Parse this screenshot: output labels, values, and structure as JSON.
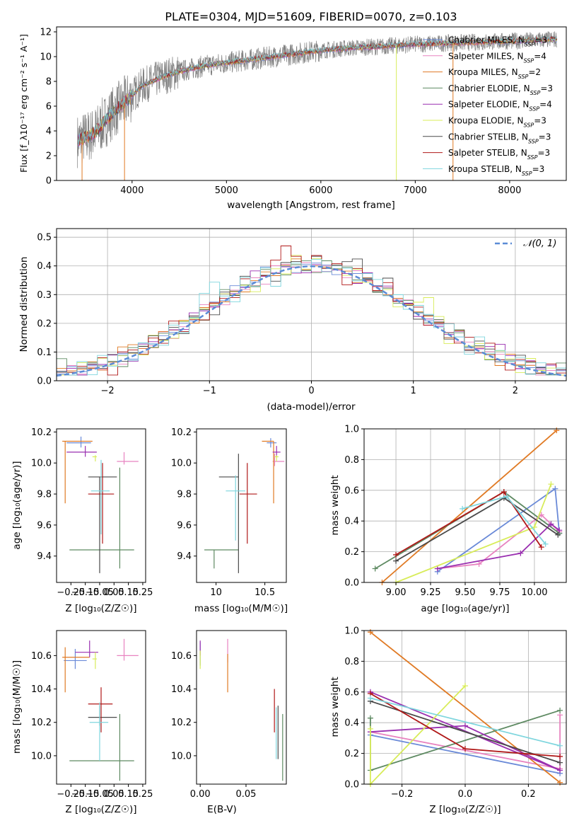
{
  "figure_title": "PLATE=0304, MJD=51609, FIBERID=0070, z=0.103",
  "colors": {
    "Chabrier MILES": "#6a8ad8",
    "Salpeter MILES": "#e883c0",
    "Kroupa MILES": "#e07a24",
    "Chabrier ELODIE": "#5e8a62",
    "Salpeter ELODIE": "#9a2fb0",
    "Kroupa ELODIE": "#d8ec5a",
    "Chabrier STELIB": "#4a4a4a",
    "Salpeter STELIB": "#b01818",
    "Kroupa STELIB": "#7fd6de",
    "data": "#808080",
    "normal": "#5b8bd6"
  },
  "legend": [
    {
      "name": "Chabrier MILES",
      "n": "3"
    },
    {
      "name": "Salpeter MILES",
      "n": "4"
    },
    {
      "name": "Kroupa MILES",
      "n": "2"
    },
    {
      "name": "Chabrier ELODIE",
      "n": "3"
    },
    {
      "name": "Salpeter ELODIE",
      "n": "4"
    },
    {
      "name": "Kroupa ELODIE",
      "n": "3"
    },
    {
      "name": "Chabrier STELIB",
      "n": "3"
    },
    {
      "name": "Salpeter STELIB",
      "n": "3"
    },
    {
      "name": "Kroupa STELIB",
      "n": "3"
    }
  ],
  "chart_data": [
    {
      "id": "spectrum",
      "type": "line",
      "xlabel": "wavelength [Angstrom, rest frame]",
      "ylabel": "Flux [f_λ10⁻¹⁷ erg cm⁻² s⁻¹ A⁻¹]",
      "xlim": [
        3200,
        8600
      ],
      "ylim": [
        0,
        12.4
      ],
      "xticks": [
        4000,
        5000,
        6000,
        7000,
        8000
      ],
      "yticks": [
        0,
        2,
        4,
        6,
        8,
        10,
        12
      ],
      "continuum": [
        [
          3420,
          3.2
        ],
        [
          3600,
          3.8
        ],
        [
          3800,
          5.5
        ],
        [
          3950,
          6.5
        ],
        [
          4100,
          7.6
        ],
        [
          4300,
          8.3
        ],
        [
          4500,
          8.8
        ],
        [
          4800,
          9.3
        ],
        [
          5000,
          9.5
        ],
        [
          5200,
          9.7
        ],
        [
          5500,
          10.0
        ],
        [
          5800,
          10.3
        ],
        [
          6000,
          10.5
        ],
        [
          6300,
          10.7
        ],
        [
          6600,
          10.8
        ],
        [
          7000,
          11.0
        ],
        [
          7400,
          11.1
        ],
        [
          7800,
          11.2
        ],
        [
          8200,
          11.3
        ],
        [
          8500,
          11.4
        ]
      ],
      "data_noise": 1.2
    },
    {
      "id": "residuals",
      "type": "histogram",
      "xlabel": "(data-model)/error",
      "ylabel": "Normed distribution",
      "xlim": [
        -2.5,
        2.5
      ],
      "ylim": [
        0,
        0.53
      ],
      "xticks": [
        -2,
        -1,
        0,
        1,
        2
      ],
      "yticks": [
        0.0,
        0.1,
        0.2,
        0.3,
        0.4,
        0.5
      ],
      "bin_width": 0.1,
      "reference": "𝒩(0, 1)",
      "sigma": 1.02,
      "amplitude": 0.4,
      "noise": [
        0.0,
        0.012,
        -0.008,
        0.015,
        -0.02,
        0.01,
        0.006,
        -0.014,
        0.022,
        -0.005,
        0.018,
        -0.01,
        0.004,
        -0.016,
        0.012,
        0.008,
        -0.006,
        0.02,
        -0.012,
        0.002,
        0.035,
        0.05,
        0.015,
        -0.018,
        0.025,
        -0.004,
        0.01,
        -0.022,
        0.014,
        0.006,
        -0.01,
        0.018,
        -0.008,
        0.012,
        0.004,
        -0.015,
        0.009,
        0.02,
        -0.006,
        0.011,
        -0.012,
        0.016,
        0.003,
        -0.009,
        0.014,
        0.007,
        -0.011,
        0.019,
        -0.003,
        0.008
      ]
    },
    {
      "id": "age_vs_Z",
      "type": "errorbar",
      "xlabel": "Z [log₁₀(Z/Z☉)]",
      "ylabel": "age  [log₁₀(age/yr)]",
      "xlim": [
        -0.35,
        0.27
      ],
      "ylim": [
        9.23,
        10.22
      ],
      "xticks": [
        -0.25,
        -0.15,
        -0.05,
        0.05,
        0.15,
        0.25
      ],
      "xticklabels": [
        "−0.25",
        "−0.15",
        "−0.05",
        "0.05",
        "0.15",
        "0.25"
      ],
      "yticks": [
        9.4,
        9.6,
        9.8,
        10.0,
        10.2
      ],
      "points": [
        {
          "s": "Chabrier MILES",
          "x": -0.18,
          "xe": [
            0.1,
            0.07
          ],
          "y": 10.13,
          "ye": [
            0.03,
            0.04
          ]
        },
        {
          "s": "Salpeter MILES",
          "x": 0.12,
          "xe": [
            0.05,
            0.1
          ],
          "y": 10.01,
          "ye": [
            0.02,
            0.06
          ]
        },
        {
          "s": "Kroupa MILES",
          "x": -0.29,
          "xe": [
            0.02,
            0.19
          ],
          "y": 10.14,
          "ye": [
            0.4,
            0.0
          ]
        },
        {
          "s": "Chabrier ELODIE",
          "x": 0.09,
          "xe": [
            0.35,
            0.1
          ],
          "y": 9.44,
          "ye": [
            0.12,
            0.53
          ]
        },
        {
          "s": "Salpeter ELODIE",
          "x": -0.15,
          "xe": [
            0.13,
            0.08
          ],
          "y": 10.07,
          "ye": [
            0.03,
            0.04
          ]
        },
        {
          "s": "Kroupa ELODIE",
          "x": -0.08,
          "xe": [
            0.02,
            0.01
          ],
          "y": 10.04,
          "ye": [
            0.03,
            0.01
          ]
        },
        {
          "s": "Chabrier STELIB",
          "x": -0.05,
          "xe": [
            0.08,
            0.12
          ],
          "y": 9.91,
          "ye": [
            0.62,
            0.0
          ]
        },
        {
          "s": "Salpeter STELIB",
          "x": -0.03,
          "xe": [
            0.1,
            0.08
          ],
          "y": 9.8,
          "ye": [
            0.32,
            0.2
          ]
        },
        {
          "s": "Kroupa STELIB",
          "x": -0.04,
          "xe": [
            0.07,
            0.06
          ],
          "y": 9.82,
          "ye": [
            0.28,
            0.2
          ]
        }
      ]
    },
    {
      "id": "age_vs_mass",
      "type": "errorbar",
      "xlabel": "mass [log₁₀(M/M☉)]",
      "ylabel": "",
      "xlim": [
        9.8,
        10.72
      ],
      "ylim": [
        9.23,
        10.22
      ],
      "xticks": [
        10.0,
        10.5
      ],
      "yticks": [
        9.4,
        9.6,
        9.8,
        10.0,
        10.2
      ],
      "points": [
        {
          "s": "Chabrier MILES",
          "x": 10.56,
          "xe": [
            0.04,
            0.06
          ],
          "y": 10.13,
          "ye": [
            0.03,
            0.03
          ]
        },
        {
          "s": "Salpeter MILES",
          "x": 10.6,
          "xe": [
            0.02,
            0.1
          ],
          "y": 10.01,
          "ye": [
            0.03,
            0.05
          ]
        },
        {
          "s": "Kroupa MILES",
          "x": 10.59,
          "xe": [
            0.12,
            0.0
          ],
          "y": 10.14,
          "ye": [
            0.4,
            0.0
          ]
        },
        {
          "s": "Chabrier ELODIE",
          "x": 9.98,
          "xe": [
            0.1,
            0.25
          ],
          "y": 9.44,
          "ye": [
            0.12,
            0.0
          ]
        },
        {
          "s": "Salpeter ELODIE",
          "x": 10.62,
          "xe": [
            0.04,
            0.04
          ],
          "y": 10.07,
          "ye": [
            0.03,
            0.04
          ]
        },
        {
          "s": "Kroupa ELODIE",
          "x": 10.62,
          "xe": [
            0.02,
            0.02
          ],
          "y": 10.04,
          "ye": [
            0.03,
            0.01
          ]
        },
        {
          "s": "Chabrier STELIB",
          "x": 10.23,
          "xe": [
            0.2,
            0.0
          ],
          "y": 9.91,
          "ye": [
            0.62,
            0.15
          ]
        },
        {
          "s": "Salpeter STELIB",
          "x": 10.32,
          "xe": [
            0.08,
            0.1
          ],
          "y": 9.8,
          "ye": [
            0.32,
            0.2
          ]
        },
        {
          "s": "Kroupa STELIB",
          "x": 10.2,
          "xe": [
            0.1,
            0.1
          ],
          "y": 9.82,
          "ye": [
            0.32,
            0.1
          ]
        }
      ]
    },
    {
      "id": "weight_vs_age",
      "type": "line",
      "xlabel": "age  [log₁₀(age/yr)]",
      "ylabel": "mass weight",
      "xlim": [
        8.77,
        10.23
      ],
      "ylim": [
        0,
        1.0
      ],
      "xticks": [
        9.0,
        9.25,
        9.5,
        9.75,
        10.0
      ],
      "xticklabels": [
        "9.00",
        "9.25",
        "9.50",
        "9.75",
        "10.00"
      ],
      "yticks": [
        0.0,
        0.2,
        0.4,
        0.6,
        0.8,
        1.0
      ],
      "series": [
        {
          "s": "Chabrier MILES",
          "x": [
            9.3,
            10.15,
            10.18
          ],
          "y": [
            0.07,
            0.61,
            0.32
          ]
        },
        {
          "s": "Salpeter MILES",
          "x": [
            9.3,
            9.6,
            10.05,
            10.18
          ],
          "y": [
            0.09,
            0.12,
            0.44,
            0.33
          ]
        },
        {
          "s": "Kroupa MILES",
          "x": [
            8.9,
            10.16
          ],
          "y": [
            0.0,
            0.99
          ]
        },
        {
          "s": "Chabrier ELODIE",
          "x": [
            8.85,
            9.78,
            10.18
          ],
          "y": [
            0.09,
            0.59,
            0.32
          ]
        },
        {
          "s": "Salpeter ELODIE",
          "x": [
            9.3,
            9.9,
            10.12,
            10.18
          ],
          "y": [
            0.09,
            0.19,
            0.38,
            0.34
          ]
        },
        {
          "s": "Kroupa ELODIE",
          "x": [
            9.0,
            10.0,
            10.12
          ],
          "y": [
            0.0,
            0.36,
            0.64
          ]
        },
        {
          "s": "Chabrier STELIB",
          "x": [
            9.0,
            9.78,
            10.17
          ],
          "y": [
            0.14,
            0.55,
            0.31
          ]
        },
        {
          "s": "Salpeter STELIB",
          "x": [
            9.0,
            9.78,
            10.05
          ],
          "y": [
            0.18,
            0.59,
            0.23
          ]
        },
        {
          "s": "Kroupa STELIB",
          "x": [
            9.48,
            9.8,
            10.08
          ],
          "y": [
            0.48,
            0.56,
            0.25
          ]
        }
      ]
    },
    {
      "id": "mass_vs_Z",
      "type": "errorbar",
      "xlabel": "Z [log₁₀(Z/Z☉)]",
      "ylabel": "mass [log₁₀(M/M☉)]",
      "xlim": [
        -0.35,
        0.27
      ],
      "ylim": [
        9.83,
        10.75
      ],
      "xticks": [
        -0.25,
        -0.15,
        -0.05,
        0.05,
        0.15,
        0.25
      ],
      "xticklabels": [
        "−0.25",
        "−0.15",
        "−0.05",
        "0.05",
        "0.15",
        "0.25"
      ],
      "yticks": [
        10.0,
        10.2,
        10.4,
        10.6
      ],
      "points": [
        {
          "s": "Chabrier MILES",
          "x": -0.22,
          "xe": [
            0.08,
            0.08
          ],
          "y": 10.57,
          "ye": [
            0.05,
            0.07
          ]
        },
        {
          "s": "Salpeter MILES",
          "x": 0.12,
          "xe": [
            0.05,
            0.1
          ],
          "y": 10.6,
          "ye": [
            0.03,
            0.1
          ]
        },
        {
          "s": "Kroupa MILES",
          "x": -0.29,
          "xe": [
            0.02,
            0.17
          ],
          "y": 10.59,
          "ye": [
            0.21,
            0.06
          ]
        },
        {
          "s": "Chabrier ELODIE",
          "x": 0.09,
          "xe": [
            0.35,
            0.1
          ],
          "y": 9.97,
          "ye": [
            0.12,
            0.28
          ]
        },
        {
          "s": "Salpeter ELODIE",
          "x": -0.12,
          "xe": [
            0.1,
            0.06
          ],
          "y": 10.62,
          "ye": [
            0.03,
            0.07
          ]
        },
        {
          "s": "Kroupa ELODIE",
          "x": -0.08,
          "xe": [
            0.02,
            0.01
          ],
          "y": 10.58,
          "ye": [
            0.06,
            0.04
          ]
        },
        {
          "s": "Chabrier STELIB",
          "x": -0.05,
          "xe": [
            0.08,
            0.12
          ],
          "y": 10.23,
          "ye": [
            0.05,
            0.07
          ]
        },
        {
          "s": "Salpeter STELIB",
          "x": -0.04,
          "xe": [
            0.09,
            0.08
          ],
          "y": 10.31,
          "ye": [
            0.17,
            0.1
          ]
        },
        {
          "s": "Kroupa STELIB",
          "x": -0.05,
          "xe": [
            0.07,
            0.06
          ],
          "y": 10.2,
          "ye": [
            0.23,
            0.12
          ]
        }
      ]
    },
    {
      "id": "mass_vs_EBV",
      "type": "errorbar",
      "xlabel": "E(B-V)",
      "ylabel": "",
      "xlim": [
        -0.004,
        0.094
      ],
      "ylim": [
        9.83,
        10.75
      ],
      "xticks": [
        0.0,
        0.05
      ],
      "xticklabels": [
        "0.00",
        "0.05"
      ],
      "yticks": [
        10.0,
        10.2,
        10.4,
        10.6
      ],
      "points": [
        {
          "s": "Chabrier MILES",
          "x": 0.0,
          "xe": [
            0,
            0
          ],
          "y": 10.6,
          "ye": [
            0.06,
            0.08
          ]
        },
        {
          "s": "Salpeter MILES",
          "x": 0.03,
          "xe": [
            0,
            0
          ],
          "y": 10.6,
          "ye": [
            0.04,
            0.1
          ]
        },
        {
          "s": "Kroupa MILES",
          "x": 0.03,
          "xe": [
            0,
            0
          ],
          "y": 10.55,
          "ye": [
            0.17,
            0.06
          ]
        },
        {
          "s": "Chabrier ELODIE",
          "x": 0.09,
          "xe": [
            0,
            0
          ],
          "y": 10.1,
          "ye": [
            0.25,
            0.15
          ]
        },
        {
          "s": "Salpeter ELODIE",
          "x": 0.0,
          "xe": [
            0,
            0
          ],
          "y": 10.64,
          "ye": [
            0.04,
            0.05
          ]
        },
        {
          "s": "Kroupa ELODIE",
          "x": 0.0,
          "xe": [
            0,
            0
          ],
          "y": 10.59,
          "ye": [
            0.07,
            0.04
          ]
        },
        {
          "s": "Chabrier STELIB",
          "x": 0.085,
          "xe": [
            0,
            0
          ],
          "y": 10.15,
          "ye": [
            0.17,
            0.15
          ]
        },
        {
          "s": "Salpeter STELIB",
          "x": 0.081,
          "xe": [
            0,
            0
          ],
          "y": 10.27,
          "ye": [
            0.13,
            0.13
          ]
        },
        {
          "s": "Kroupa STELIB",
          "x": 0.083,
          "xe": [
            0,
            0
          ],
          "y": 10.12,
          "ye": [
            0.14,
            0.17
          ]
        }
      ]
    },
    {
      "id": "weight_vs_Z",
      "type": "line",
      "xlabel": "Z [log₁₀(Z/Z☉)]",
      "ylabel": "mass weight",
      "xlim": [
        -0.32,
        0.32
      ],
      "ylim": [
        0,
        1.0
      ],
      "xticks": [
        -0.2,
        0.0,
        0.2
      ],
      "xticklabels": [
        "−0.2",
        "0.0",
        "0.2"
      ],
      "yticks": [
        0.0,
        0.2,
        0.4,
        0.6,
        0.8,
        1.0
      ],
      "series": [
        {
          "s": "Chabrier MILES",
          "x": [
            -0.3,
            0.3
          ],
          "y": [
            0.32,
            0.07
          ]
        },
        {
          "s": "Salpeter MILES",
          "x": [
            -0.3,
            0.3,
            0.3
          ],
          "y": [
            0.34,
            0.1,
            0.45
          ]
        },
        {
          "s": "Kroupa MILES",
          "x": [
            -0.3,
            0.3
          ],
          "y": [
            0.99,
            0.01
          ]
        },
        {
          "s": "Chabrier ELODIE",
          "x": [
            -0.3,
            -0.3,
            0.3
          ],
          "y": [
            0.43,
            0.09,
            0.48
          ]
        },
        {
          "s": "Salpeter ELODIE",
          "x": [
            -0.3,
            0.0,
            0.3,
            -0.3
          ],
          "y": [
            0.34,
            0.38,
            0.09,
            0.6
          ]
        },
        {
          "s": "Kroupa ELODIE",
          "x": [
            -0.3,
            -0.3,
            0.0
          ],
          "y": [
            0.36,
            0.0,
            0.64
          ]
        },
        {
          "s": "Chabrier STELIB",
          "x": [
            -0.3,
            0.3
          ],
          "y": [
            0.54,
            0.14
          ]
        },
        {
          "s": "Salpeter STELIB",
          "x": [
            -0.3,
            0.0,
            0.3
          ],
          "y": [
            0.59,
            0.23,
            0.18
          ]
        },
        {
          "s": "Kroupa STELIB",
          "x": [
            -0.3,
            0.3
          ],
          "y": [
            0.56,
            0.25
          ]
        }
      ]
    }
  ]
}
